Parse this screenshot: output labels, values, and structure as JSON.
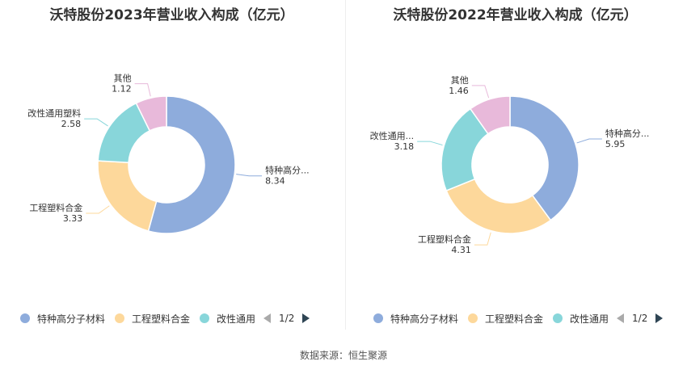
{
  "charts": [
    {
      "title": "沃特股份2023年营业收入构成（亿元）",
      "legend": [
        "特种高分子材料",
        "工程塑料合金",
        "改性通用"
      ],
      "pager": "1/2"
    },
    {
      "title": "沃特股份2022年营业收入构成（亿元）",
      "legend": [
        "特种高分子材料",
        "工程塑料合金",
        "改性通用"
      ],
      "pager": "1/2"
    }
  ],
  "source": "数据来源：恒生聚源",
  "chart_data": [
    {
      "type": "pie",
      "title": "沃特股份2023年营业收入构成（亿元）",
      "slices": [
        {
          "name": "特种高分子材料",
          "label": "特种高分...",
          "value": 8.34,
          "color": "#8eacdc"
        },
        {
          "name": "工程塑料合金",
          "label": "工程塑料合金",
          "value": 3.33,
          "color": "#fdd89b"
        },
        {
          "name": "改性通用塑料",
          "label": "改性通用塑料",
          "value": 2.58,
          "color": "#88d6da"
        },
        {
          "name": "其他",
          "label": "其他",
          "value": 1.12,
          "color": "#e8b9da"
        }
      ]
    },
    {
      "type": "pie",
      "title": "沃特股份2022年营业收入构成（亿元）",
      "slices": [
        {
          "name": "特种高分子材料",
          "label": "特种高分...",
          "value": 5.95,
          "color": "#8eacdc"
        },
        {
          "name": "工程塑料合金",
          "label": "工程塑料合金",
          "value": 4.31,
          "color": "#fdd89b"
        },
        {
          "name": "改性通用塑料",
          "label": "改性通用...",
          "value": 3.18,
          "color": "#88d6da"
        },
        {
          "name": "其他",
          "label": "其他",
          "value": 1.46,
          "color": "#e8b9da"
        }
      ]
    }
  ]
}
